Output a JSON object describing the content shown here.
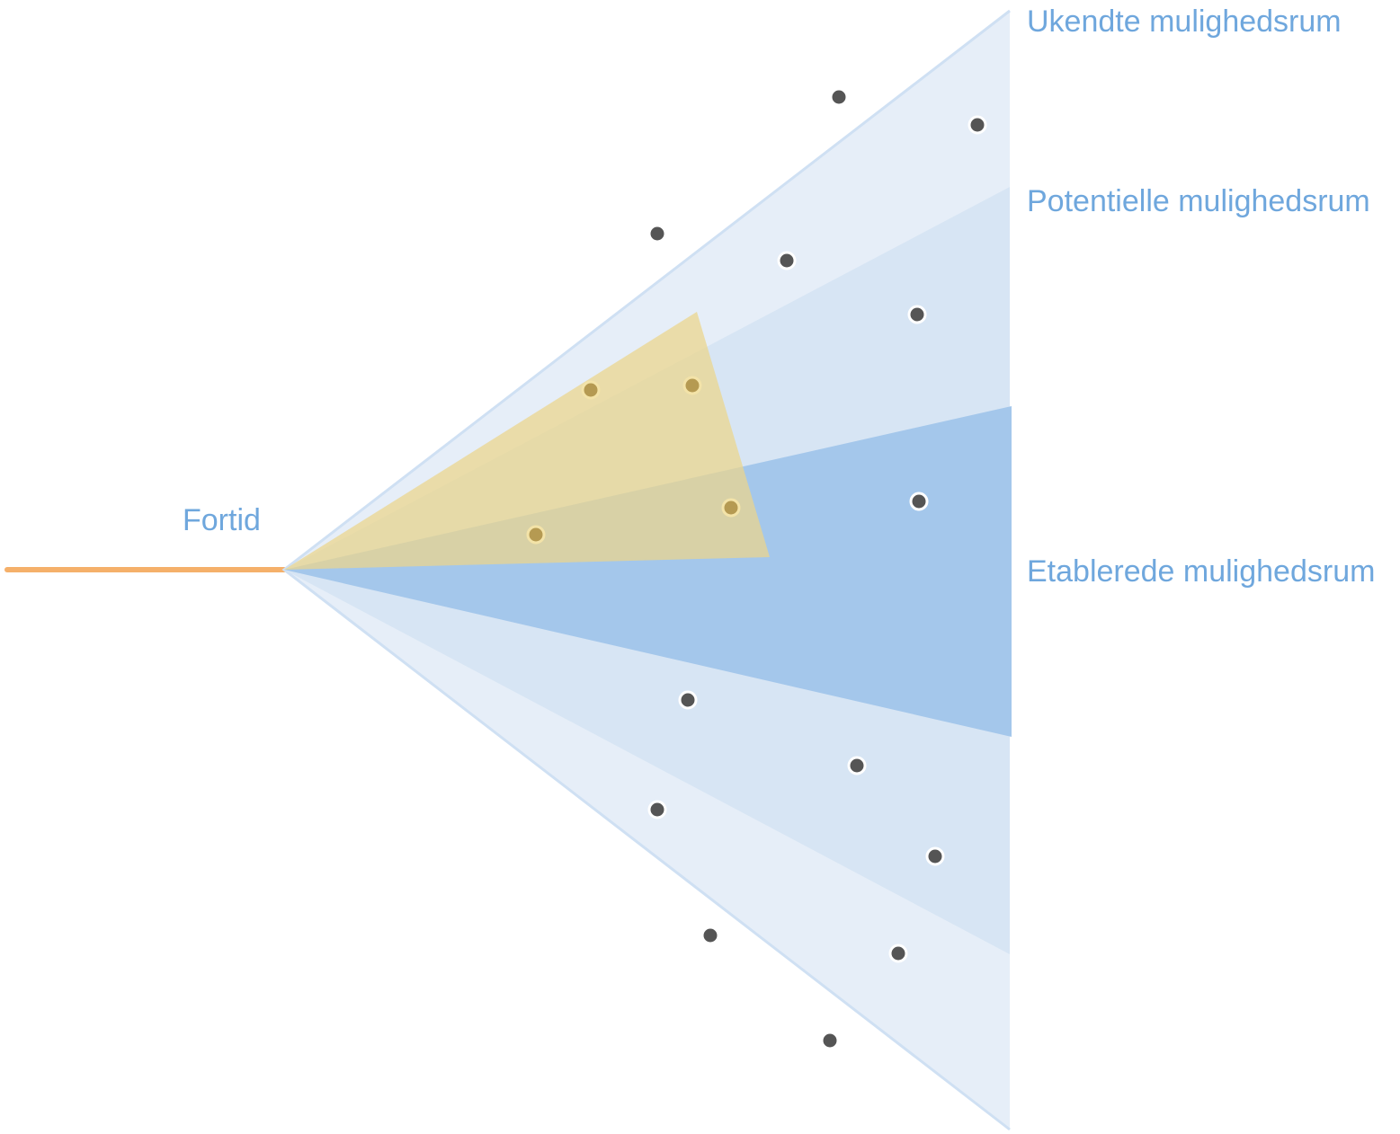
{
  "labels": {
    "past": "Fortid",
    "unknown": "Ukendte mulighedsrum",
    "potential": "Potentielle mulighedsrum",
    "established": "Etablerede mulighedsrum"
  },
  "colors": {
    "label_text": "#6fa7dd",
    "past_line": "#f5b06a",
    "unknown_fill": "#e6eef8",
    "unknown_stroke": "#cfe0f3",
    "potential_fill": "#d7e5f4",
    "established_fill": "#a4c7eb",
    "highlight_fill": "#ecd58a",
    "dot_fill": "#555555",
    "dot_stroke": "#ffffff",
    "highlight_dot_fill": "#b59a52",
    "highlight_dot_stroke": "#f3e3a8"
  }
}
